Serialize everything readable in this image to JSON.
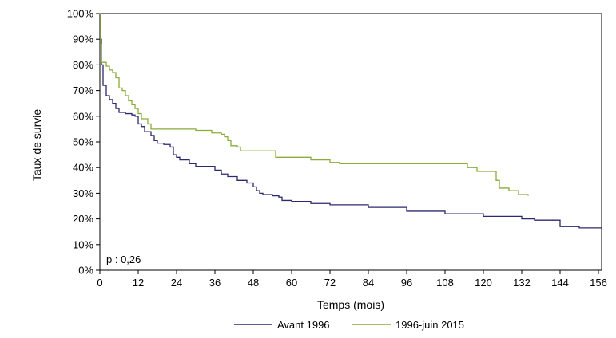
{
  "chart_data": {
    "type": "line",
    "xlabel": "Temps (mois)",
    "ylabel": "Taux de survie",
    "xlim": [
      0,
      157
    ],
    "ylim": [
      0,
      100
    ],
    "x_ticks": [
      0,
      12,
      24,
      36,
      48,
      60,
      72,
      84,
      96,
      108,
      120,
      132,
      144,
      156
    ],
    "y_ticks": [
      0,
      10,
      20,
      30,
      40,
      50,
      60,
      70,
      80,
      90,
      100
    ],
    "y_tick_labels": [
      "0%",
      "10%",
      "20%",
      "30%",
      "40%",
      "50%",
      "60%",
      "70%",
      "80%",
      "90%",
      "100%"
    ],
    "grid": false,
    "legend_position": "bottom",
    "annotation": "p : 0,26",
    "series": [
      {
        "name": "Avant 1996",
        "color": "#2b2a6e",
        "step": true,
        "points": [
          [
            0,
            100
          ],
          [
            0.2,
            90
          ],
          [
            0.5,
            80
          ],
          [
            1,
            72
          ],
          [
            2,
            68
          ],
          [
            3,
            66.5
          ],
          [
            4,
            65
          ],
          [
            5,
            63
          ],
          [
            6,
            61.5
          ],
          [
            8,
            61
          ],
          [
            10,
            60.5
          ],
          [
            11,
            60
          ],
          [
            12,
            57
          ],
          [
            13,
            56
          ],
          [
            14,
            54
          ],
          [
            16,
            52.5
          ],
          [
            17,
            50.5
          ],
          [
            18,
            49.5
          ],
          [
            20,
            49
          ],
          [
            22,
            48
          ],
          [
            23,
            45
          ],
          [
            24,
            44
          ],
          [
            25,
            43
          ],
          [
            28,
            41.5
          ],
          [
            30,
            40.5
          ],
          [
            36,
            39
          ],
          [
            38,
            37.5
          ],
          [
            40,
            36.5
          ],
          [
            43,
            35
          ],
          [
            46,
            34
          ],
          [
            48,
            32.5
          ],
          [
            49,
            31
          ],
          [
            50,
            30
          ],
          [
            51,
            29.5
          ],
          [
            54,
            29
          ],
          [
            56,
            28.5
          ],
          [
            57,
            27.2
          ],
          [
            60,
            26.8
          ],
          [
            66,
            26
          ],
          [
            72,
            25.5
          ],
          [
            84,
            24.5
          ],
          [
            96,
            23
          ],
          [
            108,
            22
          ],
          [
            120,
            21
          ],
          [
            132,
            20
          ],
          [
            136,
            19.5
          ],
          [
            144,
            17
          ],
          [
            150,
            16.5
          ],
          [
            157,
            16
          ]
        ]
      },
      {
        "name": "1996-juin 2015",
        "color": "#8aac3a",
        "step": true,
        "points": [
          [
            0,
            100
          ],
          [
            0.2,
            88
          ],
          [
            0.5,
            81
          ],
          [
            2,
            79.5
          ],
          [
            3,
            78
          ],
          [
            4,
            77
          ],
          [
            5,
            75
          ],
          [
            6,
            71
          ],
          [
            7,
            70
          ],
          [
            8,
            68
          ],
          [
            9,
            66
          ],
          [
            10,
            64.5
          ],
          [
            11,
            63
          ],
          [
            12,
            61
          ],
          [
            13,
            59
          ],
          [
            15,
            57
          ],
          [
            16,
            55
          ],
          [
            18,
            55
          ],
          [
            20,
            55
          ],
          [
            24,
            55
          ],
          [
            26,
            55
          ],
          [
            27,
            55
          ],
          [
            30,
            54.5
          ],
          [
            35,
            53.5
          ],
          [
            38,
            53
          ],
          [
            39,
            52
          ],
          [
            40,
            50.5
          ],
          [
            41,
            48.5
          ],
          [
            43,
            48
          ],
          [
            44,
            46.5
          ],
          [
            48,
            46.5
          ],
          [
            52,
            46.5
          ],
          [
            54,
            46.5
          ],
          [
            55,
            44
          ],
          [
            60,
            44
          ],
          [
            66,
            43
          ],
          [
            72,
            42
          ],
          [
            75,
            41.5
          ],
          [
            84,
            41.5
          ],
          [
            96,
            41.5
          ],
          [
            108,
            41.5
          ],
          [
            113,
            41.5
          ],
          [
            115,
            40
          ],
          [
            118,
            38.5
          ],
          [
            123,
            38.5
          ],
          [
            124,
            35
          ],
          [
            125,
            32
          ],
          [
            128,
            31
          ],
          [
            131,
            29.5
          ],
          [
            134,
            29
          ]
        ]
      }
    ]
  }
}
